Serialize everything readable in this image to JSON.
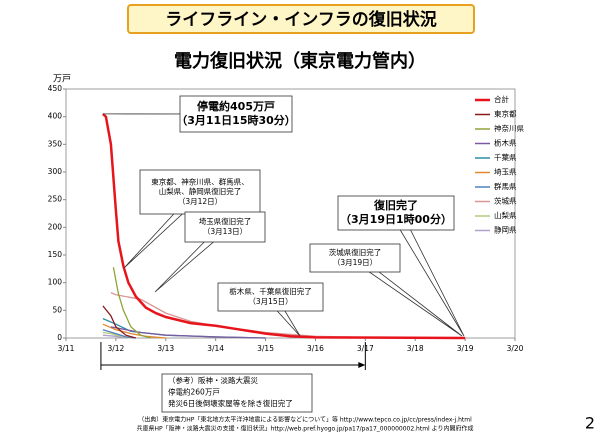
{
  "header": {
    "title": "ライフライン・インフラの復旧状況"
  },
  "chart_data": {
    "type": "line",
    "title": "電力復旧状況（東京電力管内）",
    "y_label": "万戸",
    "xlim": [
      11,
      20
    ],
    "xticks": [
      {
        "value": 11,
        "label": "3/11"
      },
      {
        "value": 12,
        "label": "3/12"
      },
      {
        "value": 13,
        "label": "3/13"
      },
      {
        "value": 14,
        "label": "3/14"
      },
      {
        "value": 15,
        "label": "3/15"
      },
      {
        "value": 16,
        "label": "3/16"
      },
      {
        "value": 17,
        "label": "3/17"
      },
      {
        "value": 18,
        "label": "3/18"
      },
      {
        "value": 19,
        "label": "3/19"
      },
      {
        "value": 20,
        "label": "3/20"
      }
    ],
    "ylim": [
      0,
      450
    ],
    "yticks": [
      0,
      50,
      100,
      150,
      200,
      250,
      300,
      350,
      400,
      450
    ],
    "grid": false,
    "series": [
      {
        "name": "合計",
        "color": "#e8141c",
        "x": [
          11.74,
          11.8,
          11.9,
          11.95,
          12.0,
          12.05,
          12.15,
          12.25,
          12.4,
          12.6,
          12.8,
          13.0,
          13.5,
          14.0,
          14.5,
          15.0,
          15.5,
          16.0,
          19.0
        ],
        "values": [
          405,
          400,
          350,
          290,
          230,
          175,
          130,
          100,
          75,
          55,
          45,
          38,
          27,
          22,
          15,
          8,
          3,
          1,
          0
        ]
      },
      {
        "name": "東京都",
        "color": "#8b1a1a",
        "x": [
          11.74,
          11.9,
          12.0,
          12.2,
          12.4
        ],
        "values": [
          58,
          40,
          20,
          5,
          0
        ]
      },
      {
        "name": "神奈川県",
        "color": "#8fa33a",
        "x": [
          11.95,
          12.05,
          12.15,
          12.3,
          12.5,
          12.7
        ],
        "values": [
          128,
          80,
          50,
          20,
          5,
          0
        ]
      },
      {
        "name": "栃木県",
        "color": "#7a5aa0",
        "x": [
          11.9,
          12.2,
          12.5,
          13.0,
          14.0,
          15.0
        ],
        "values": [
          20,
          15,
          10,
          5,
          2,
          0
        ]
      },
      {
        "name": "千葉県",
        "color": "#2e8fa8",
        "x": [
          11.74,
          12.0,
          12.3,
          13.0,
          14.0,
          15.0
        ],
        "values": [
          35,
          25,
          12,
          5,
          2,
          0
        ]
      },
      {
        "name": "埼玉県",
        "color": "#e08a30",
        "x": [
          11.74,
          12.0,
          12.3,
          12.6,
          13.0
        ],
        "values": [
          25,
          15,
          8,
          3,
          0
        ]
      },
      {
        "name": "群馬県",
        "color": "#4f7fc0",
        "x": [
          11.74,
          12.0,
          12.2,
          12.4
        ],
        "values": [
          15,
          8,
          2,
          0
        ]
      },
      {
        "name": "茨城県",
        "color": "#d99694",
        "x": [
          11.9,
          12.0,
          12.5,
          13.0,
          13.5,
          14.0,
          15.0,
          16.0,
          17.0,
          19.0
        ],
        "values": [
          82,
          78,
          70,
          45,
          30,
          22,
          10,
          3,
          1,
          0
        ]
      },
      {
        "name": "山梨県",
        "color": "#b3cc7a",
        "x": [
          11.74,
          11.9,
          12.1,
          12.3
        ],
        "values": [
          10,
          8,
          3,
          0
        ]
      },
      {
        "name": "静岡県",
        "color": "#b0a0cc",
        "x": [
          11.74,
          12.0,
          12.2
        ],
        "values": [
          5,
          3,
          0
        ]
      }
    ],
    "annotations": [
      {
        "lines": [
          "停電約405万戸",
          "（3月11日15時30分）"
        ]
      },
      {
        "lines": [
          "東京都、神奈川県、群馬県、",
          "山梨県、静岡県復旧完了",
          "（3月12日）"
        ]
      },
      {
        "lines": [
          "埼玉県復旧完了",
          "（3月13日）"
        ]
      },
      {
        "lines": [
          "茨城県復旧完了",
          "（3月19日）"
        ]
      },
      {
        "lines": [
          "栃木県、千葉県復旧完了",
          "（3月15日）"
        ]
      },
      {
        "lines": [
          "復旧完了",
          "（3月19日1時00分）"
        ]
      }
    ],
    "reference": [
      "（参考）阪神・淡路大震災",
      "停電約260万戸",
      "発災6日後倒壊家屋等を除き復旧完了"
    ]
  },
  "footnotes": [
    "（出典）東京電力HP「東北地方太平洋沖地震による影響などについて」等 http://www.tepco.co.jp/cc/press/index-j.html",
    "兵庫県HP「阪神・淡路大震災の支援・復旧状況」http://web.pref.hyogo.jp/pa17/pa17_000000002.html より内閣府作成"
  ],
  "page_number": "2"
}
